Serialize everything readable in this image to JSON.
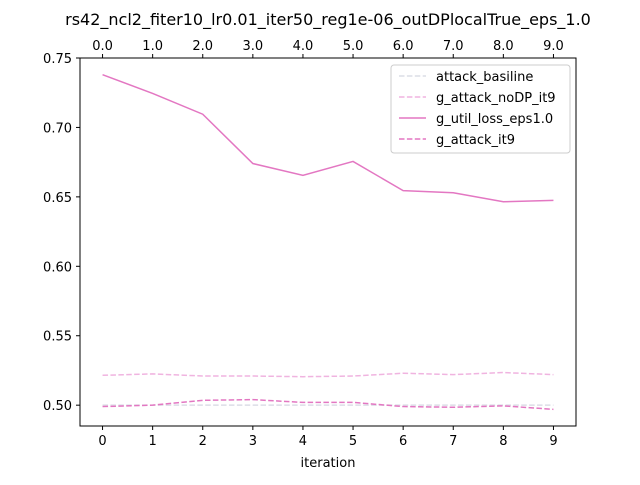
{
  "chart_data": {
    "type": "line",
    "title": "rs42_ncl2_fiter10_lr0.01_iter50_reg1e-06_outDPlocalTrue_eps_1.0",
    "xlabel": "iteration",
    "ylabel": "",
    "x": [
      0,
      1,
      2,
      3,
      4,
      5,
      6,
      7,
      8,
      9
    ],
    "xlim": [
      -0.45,
      9.45
    ],
    "ylim": [
      0.485,
      0.75
    ],
    "xticks_bottom": [
      "0",
      "1",
      "2",
      "3",
      "4",
      "5",
      "6",
      "7",
      "8",
      "9"
    ],
    "xticks_top": [
      "0.0",
      "1.0",
      "2.0",
      "3.0",
      "4.0",
      "5.0",
      "6.0",
      "7.0",
      "8.0",
      "9.0"
    ],
    "yticks": [
      {
        "value": 0.5,
        "label": "0.50"
      },
      {
        "value": 0.55,
        "label": "0.55"
      },
      {
        "value": 0.6,
        "label": "0.60"
      },
      {
        "value": 0.65,
        "label": "0.65"
      },
      {
        "value": 0.7,
        "label": "0.70"
      },
      {
        "value": 0.75,
        "label": "0.75"
      }
    ],
    "grid": false,
    "legend_position": "top-right",
    "series": [
      {
        "name": "attack_basiline",
        "color": "#dcdde6",
        "dash": "dashed",
        "values": [
          0.5,
          0.5,
          0.5,
          0.5,
          0.5,
          0.5,
          0.5,
          0.5,
          0.5,
          0.5
        ]
      },
      {
        "name": "g_attack_noDP_it9",
        "color": "#f0b4e0",
        "dash": "dashed",
        "values": [
          0.5215,
          0.5225,
          0.521,
          0.521,
          0.5205,
          0.521,
          0.523,
          0.522,
          0.5235,
          0.522
        ]
      },
      {
        "name": "g_util_loss_eps1.0",
        "color": "#e377c2",
        "dash": "solid",
        "values": [
          0.738,
          0.7245,
          0.7095,
          0.674,
          0.6655,
          0.6755,
          0.6545,
          0.653,
          0.6465,
          0.6475
        ]
      },
      {
        "name": "g_attack_it9",
        "color": "#e377c2",
        "dash": "dashed",
        "values": [
          0.499,
          0.5,
          0.5035,
          0.504,
          0.502,
          0.502,
          0.499,
          0.4985,
          0.4995,
          0.497
        ]
      }
    ]
  }
}
